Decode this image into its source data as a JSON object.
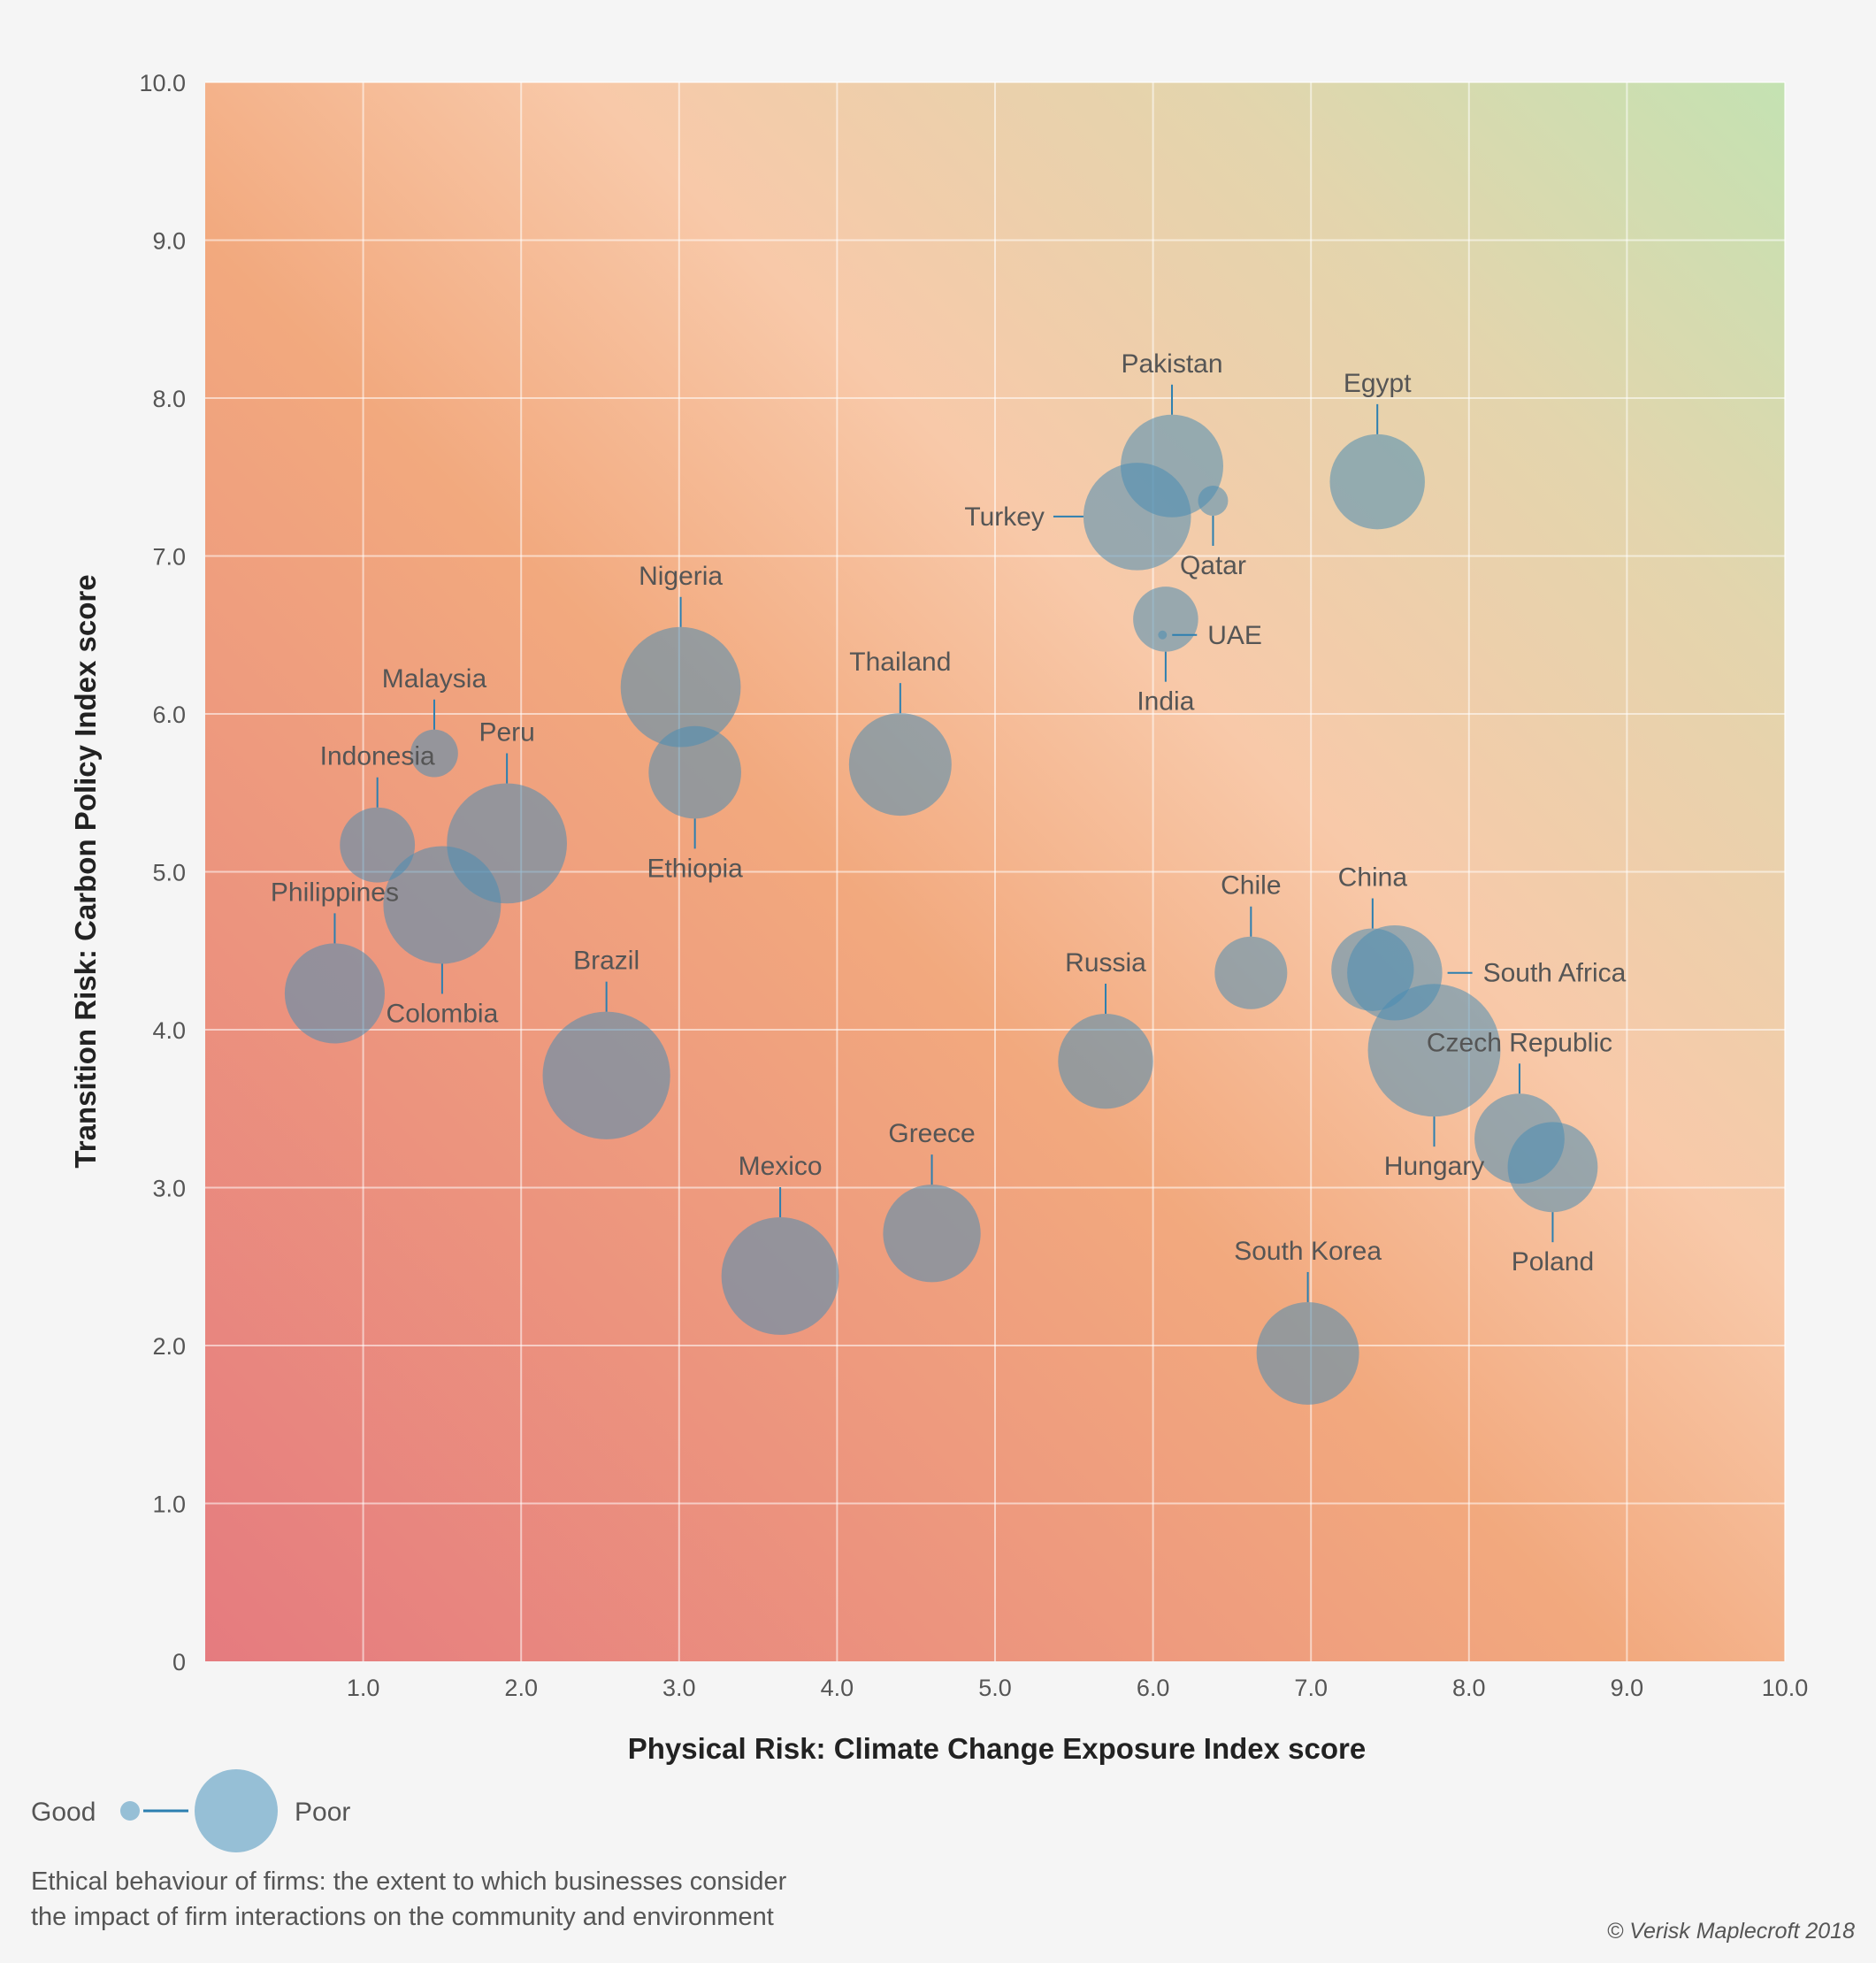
{
  "chart_data": {
    "type": "scatter",
    "subtype": "bubble",
    "xlabel": "Physical Risk: Climate Change Exposure Index score",
    "ylabel": "Transition Risk: Carbon Policy Index score",
    "xlim": [
      0,
      10
    ],
    "ylim": [
      0,
      10
    ],
    "grid": true,
    "x_ticks": [
      "1.0",
      "2.0",
      "3.0",
      "4.0",
      "5.0",
      "6.0",
      "7.0",
      "8.0",
      "9.0",
      "10.0"
    ],
    "y_ticks": [
      "0",
      "1.0",
      "2.0",
      "3.0",
      "4.0",
      "5.0",
      "6.0",
      "7.0",
      "8.0",
      "9.0",
      "10.0"
    ],
    "background_gradient": [
      "#e57b7f",
      "#f2a97e",
      "#f8c9a9",
      "#e3d5ad",
      "#c4e2b2"
    ],
    "bubble_color": "#4a8db2",
    "points": [
      {
        "name": "Pakistan",
        "x": 6.12,
        "y": 7.57,
        "size": 8.2,
        "label": "top"
      },
      {
        "name": "Turkey",
        "x": 5.9,
        "y": 7.25,
        "size": 8.6,
        "label": "left"
      },
      {
        "name": "Qatar",
        "x": 6.38,
        "y": 7.35,
        "size": 2.4,
        "label": "bottom"
      },
      {
        "name": "Egypt",
        "x": 7.42,
        "y": 7.47,
        "size": 7.6,
        "label": "top"
      },
      {
        "name": "India",
        "x": 6.08,
        "y": 6.6,
        "size": 5.2,
        "label": "bottom"
      },
      {
        "name": "UAE",
        "x": 6.06,
        "y": 6.5,
        "size": 0.7,
        "label": "right"
      },
      {
        "name": "Nigeria",
        "x": 3.01,
        "y": 6.17,
        "size": 9.6,
        "label": "top"
      },
      {
        "name": "Ethiopia",
        "x": 3.1,
        "y": 5.63,
        "size": 7.4,
        "label": "bottom"
      },
      {
        "name": "Thailand",
        "x": 4.4,
        "y": 5.68,
        "size": 8.2,
        "label": "top"
      },
      {
        "name": "Malaysia",
        "x": 1.45,
        "y": 5.75,
        "size": 3.8,
        "label": "top"
      },
      {
        "name": "Peru",
        "x": 1.91,
        "y": 5.18,
        "size": 9.6,
        "label": "top"
      },
      {
        "name": "Indonesia",
        "x": 1.09,
        "y": 5.17,
        "size": 6.0,
        "label": "top"
      },
      {
        "name": "Colombia",
        "x": 1.5,
        "y": 4.79,
        "size": 9.4,
        "label": "bottom"
      },
      {
        "name": "Philippines",
        "x": 0.82,
        "y": 4.23,
        "size": 8.0,
        "label": "top"
      },
      {
        "name": "Brazil",
        "x": 2.54,
        "y": 3.71,
        "size": 10.2,
        "label": "top"
      },
      {
        "name": "Mexico",
        "x": 3.64,
        "y": 2.44,
        "size": 9.4,
        "label": "top"
      },
      {
        "name": "Greece",
        "x": 4.6,
        "y": 2.71,
        "size": 7.8,
        "label": "top"
      },
      {
        "name": "Russia",
        "x": 5.7,
        "y": 3.8,
        "size": 7.6,
        "label": "top"
      },
      {
        "name": "Chile",
        "x": 6.62,
        "y": 4.36,
        "size": 5.8,
        "label": "top"
      },
      {
        "name": "China",
        "x": 7.39,
        "y": 4.38,
        "size": 6.6,
        "label": "top"
      },
      {
        "name": "South Africa",
        "x": 7.53,
        "y": 4.36,
        "size": 7.6,
        "label": "right"
      },
      {
        "name": "Hungary",
        "x": 7.78,
        "y": 3.87,
        "size": 10.6,
        "label": "bottom"
      },
      {
        "name": "Czech Republic",
        "x": 8.32,
        "y": 3.31,
        "size": 7.2,
        "label": "top"
      },
      {
        "name": "Poland",
        "x": 8.53,
        "y": 3.13,
        "size": 7.2,
        "label": "bottom"
      },
      {
        "name": "South Korea",
        "x": 6.98,
        "y": 1.95,
        "size": 8.2,
        "label": "top"
      }
    ],
    "legend": {
      "good_label": "Good",
      "poor_label": "Poor",
      "size_description": "Ethical behaviour of firms: the extent to which businesses consider the impact of firm interactions on the community and environment",
      "size_description_lines": [
        "Ethical behaviour of firms: the extent to which businesses consider",
        "the impact of firm interactions on the community and environment"
      ]
    },
    "copyright": "© Verisk Maplecroft 2018"
  }
}
